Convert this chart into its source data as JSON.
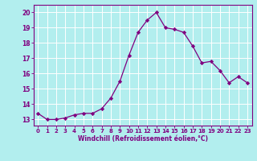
{
  "x": [
    0,
    1,
    2,
    3,
    4,
    5,
    6,
    7,
    8,
    9,
    10,
    11,
    12,
    13,
    14,
    15,
    16,
    17,
    18,
    19,
    20,
    21,
    22,
    23
  ],
  "y": [
    13.4,
    13.0,
    13.0,
    13.1,
    13.3,
    13.4,
    13.4,
    13.7,
    14.4,
    15.5,
    17.2,
    18.7,
    19.5,
    20.0,
    19.0,
    18.9,
    18.7,
    17.8,
    16.7,
    16.8,
    16.2,
    15.4,
    15.8,
    15.4
  ],
  "line_color": "#800080",
  "marker": "D",
  "marker_size": 2.2,
  "bg_color": "#b2eeee",
  "grid_color": "#ffffff",
  "xlabel": "Windchill (Refroidissement éolien,°C)",
  "tick_color": "#800080",
  "yticks": [
    13,
    14,
    15,
    16,
    17,
    18,
    19,
    20
  ],
  "xticks": [
    0,
    1,
    2,
    3,
    4,
    5,
    6,
    7,
    8,
    9,
    10,
    11,
    12,
    13,
    14,
    15,
    16,
    17,
    18,
    19,
    20,
    21,
    22,
    23
  ],
  "ylim": [
    12.6,
    20.5
  ],
  "xlim": [
    -0.5,
    23.5
  ],
  "spine_color": "#800080"
}
